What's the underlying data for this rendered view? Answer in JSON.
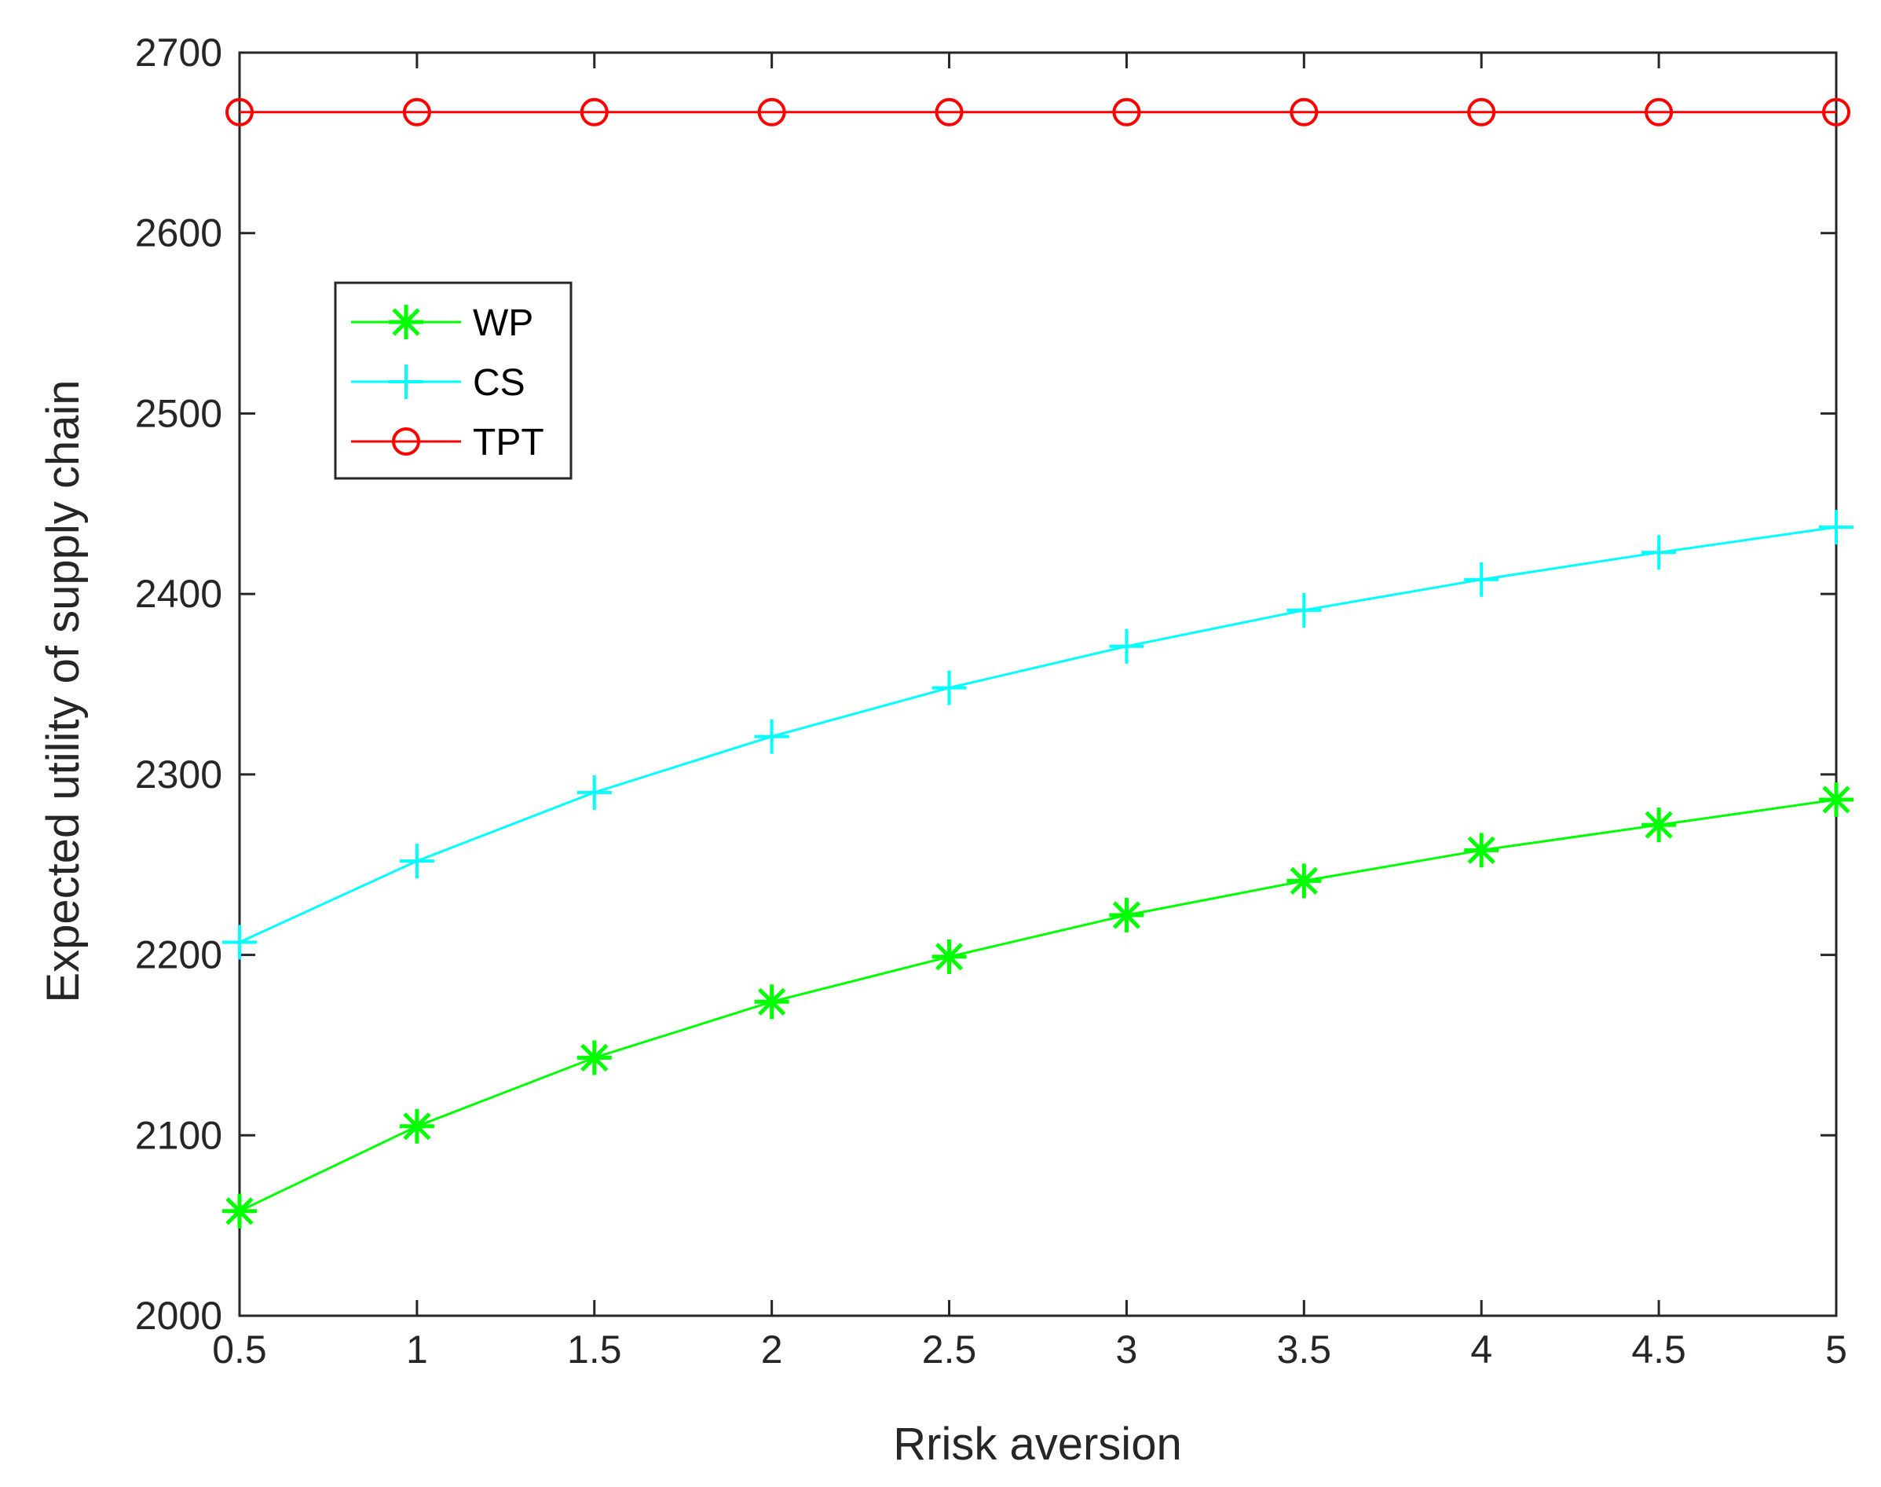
{
  "chart_data": {
    "type": "line",
    "title": "",
    "xlabel": "Rrisk aversion",
    "ylabel": "Expected utility of supply chain",
    "xlim": [
      0.5,
      5
    ],
    "ylim": [
      2000,
      2700
    ],
    "x_ticks": [
      "0.5",
      "1",
      "1.5",
      "2",
      "2.5",
      "3",
      "3.5",
      "4",
      "4.5",
      "5"
    ],
    "y_ticks": [
      "2000",
      "2100",
      "2200",
      "2300",
      "2400",
      "2500",
      "2600",
      "2700"
    ],
    "x": [
      0.5,
      1,
      1.5,
      2,
      2.5,
      3,
      3.5,
      4,
      4.5,
      5
    ],
    "legend_position": "upper-left",
    "grid": false,
    "series": [
      {
        "name": "WP",
        "marker": "asterisk",
        "color": "#00ff00",
        "values": [
          2058,
          2105,
          2143,
          2174,
          2199,
          2222,
          2241,
          2258,
          2272,
          2286
        ]
      },
      {
        "name": "CS",
        "marker": "plus",
        "color": "#00ffff",
        "values": [
          2207,
          2252,
          2290,
          2321,
          2348,
          2371,
          2391,
          2408,
          2423,
          2437
        ]
      },
      {
        "name": "TPT",
        "marker": "circle",
        "color": "#ff0000",
        "values": [
          2667,
          2667,
          2667,
          2667,
          2667,
          2667,
          2667,
          2667,
          2667,
          2667
        ]
      }
    ]
  }
}
